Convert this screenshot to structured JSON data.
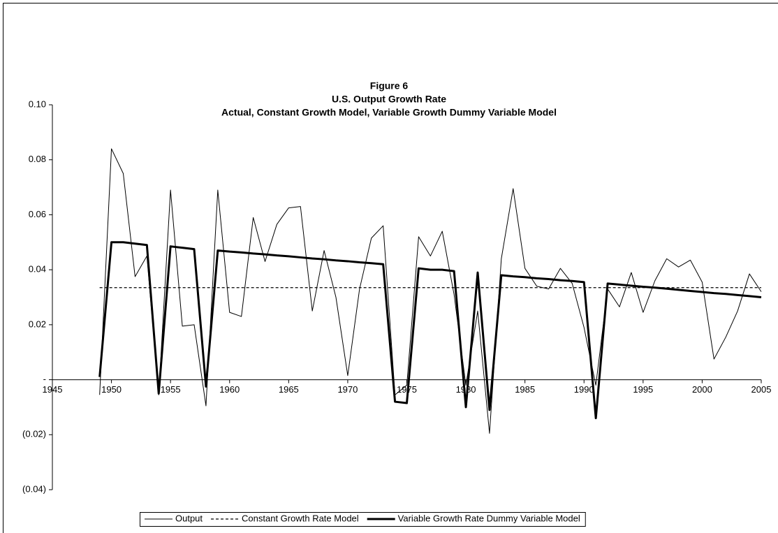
{
  "chart_data": {
    "type": "line",
    "title": [
      "Figure 6",
      "U.S. Output Growth Rate",
      "Actual, Constant Growth Model, Variable Growth Dummy Variable Model"
    ],
    "x": [
      1949,
      1950,
      1951,
      1952,
      1953,
      1954,
      1955,
      1956,
      1957,
      1958,
      1959,
      1960,
      1961,
      1962,
      1963,
      1964,
      1965,
      1966,
      1967,
      1968,
      1969,
      1970,
      1971,
      1972,
      1973,
      1974,
      1975,
      1976,
      1977,
      1978,
      1979,
      1980,
      1981,
      1982,
      1983,
      1984,
      1985,
      1986,
      1987,
      1988,
      1989,
      1990,
      1991,
      1992,
      1993,
      1994,
      1995,
      1996,
      1997,
      1998,
      1999,
      2000,
      2001,
      2002,
      2003,
      2004,
      2005
    ],
    "series": [
      {
        "name": "Output",
        "color": "#000000",
        "line_width": 1,
        "dashed": false,
        "values": [
          -0.0055,
          0.084,
          0.075,
          0.0375,
          0.045,
          -0.0055,
          0.069,
          0.0195,
          0.02,
          -0.0095,
          0.069,
          0.0245,
          0.023,
          0.059,
          0.043,
          0.0565,
          0.0625,
          0.063,
          0.025,
          0.047,
          0.03,
          0.0015,
          0.033,
          0.0515,
          0.056,
          -0.0055,
          -0.002,
          0.052,
          0.045,
          0.054,
          0.031,
          -0.002,
          0.025,
          -0.0195,
          0.044,
          0.0695,
          0.0405,
          0.034,
          0.033,
          0.0405,
          0.035,
          0.019,
          -0.002,
          0.033,
          0.0265,
          0.039,
          0.0245,
          0.036,
          0.044,
          0.041,
          0.0435,
          0.0355,
          0.0075,
          0.0155,
          0.025,
          0.0385,
          0.032
        ]
      },
      {
        "name": "Constant Growth Rate Model",
        "color": "#000000",
        "line_width": 1.3,
        "dashed": true,
        "values": [
          0.0335,
          0.0335,
          0.0335,
          0.0335,
          0.0335,
          0.0335,
          0.0335,
          0.0335,
          0.0335,
          0.0335,
          0.0335,
          0.0335,
          0.0335,
          0.0335,
          0.0335,
          0.0335,
          0.0335,
          0.0335,
          0.0335,
          0.0335,
          0.0335,
          0.0335,
          0.0335,
          0.0335,
          0.0335,
          0.0335,
          0.0335,
          0.0335,
          0.0335,
          0.0335,
          0.0335,
          0.0335,
          0.0335,
          0.0335,
          0.0335,
          0.0335,
          0.0335,
          0.0335,
          0.0335,
          0.0335,
          0.0335,
          0.0335,
          0.0335,
          0.0335,
          0.0335,
          0.0335,
          0.0335,
          0.0335,
          0.0335,
          0.0335,
          0.0335,
          0.0335,
          0.0335,
          0.0335,
          0.0335,
          0.0335,
          0.0335
        ]
      },
      {
        "name": "Variable Growth Rate Dummy Variable Model",
        "color": "#000000",
        "line_width": 3,
        "dashed": false,
        "values": [
          0.001,
          0.05,
          0.05,
          0.0495,
          0.049,
          -0.005,
          0.0485,
          0.048,
          0.0475,
          -0.0025,
          0.047,
          0.0466,
          0.0463,
          0.0459,
          0.0456,
          0.0452,
          0.0449,
          0.0445,
          0.0441,
          0.0438,
          0.0434,
          0.0431,
          0.0427,
          0.0424,
          0.042,
          -0.008,
          -0.0085,
          0.0405,
          0.04,
          0.04,
          0.0395,
          -0.01,
          0.039,
          -0.011,
          0.038,
          0.0376,
          0.0373,
          0.0369,
          0.0366,
          0.0362,
          0.0359,
          0.0355,
          -0.014,
          0.035,
          0.0346,
          0.0342,
          0.0338,
          0.0335,
          0.0331,
          0.0327,
          0.0323,
          0.0319,
          0.0315,
          0.0312,
          0.0308,
          0.0304,
          0.03
        ]
      }
    ],
    "xlim": [
      1945,
      2005
    ],
    "xticks": [
      1945,
      1950,
      1955,
      1960,
      1965,
      1970,
      1975,
      1980,
      1985,
      1990,
      1995,
      2000,
      2005
    ],
    "ylim": [
      -0.04,
      0.1
    ],
    "yticks": [
      {
        "value": -0.04,
        "label": "(0.04)"
      },
      {
        "value": -0.02,
        "label": "(0.02)"
      },
      {
        "value": 0,
        "label": "-"
      },
      0.02,
      0.04,
      0.06,
      {
        "value": 0.1,
        "label": "0.10"
      },
      0.08
    ],
    "grid": false,
    "legend": "bottom"
  }
}
